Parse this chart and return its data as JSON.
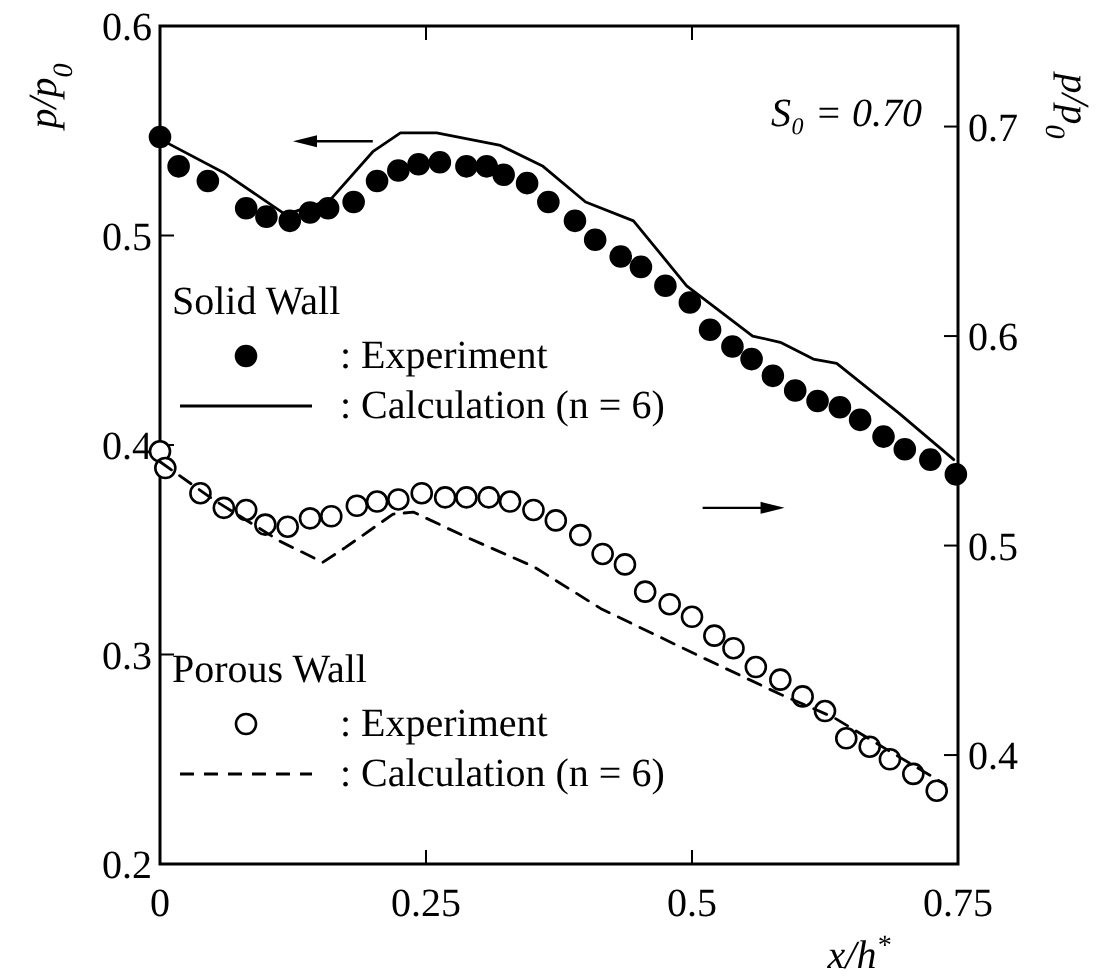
{
  "chart_data": {
    "type": "scatter",
    "xlabel": "x/h$^{*}$",
    "ylabel": "p/p$_{0}$",
    "y2label": "p/p$_{0}$",
    "xlim": [
      0,
      0.75
    ],
    "xticks": [
      0,
      0.25,
      0.5,
      0.75
    ],
    "ylim": [
      0.2,
      0.6
    ],
    "yticks": [
      0.2,
      0.3,
      0.4,
      0.5,
      0.6
    ],
    "y2lim": [
      0.348,
      0.748
    ],
    "y2ticks": [
      0.4,
      0.5,
      0.6,
      0.7
    ],
    "legend": "left",
    "annotations": [
      "S₀ = 0.70",
      "Solid Wall",
      "Porous Wall"
    ],
    "series": [
      {
        "name": ": Experiment",
        "type": "scatter",
        "marker": "circle",
        "color": "#000000",
        "x": [
          0,
          0.0175,
          0.045,
          0.081,
          0.1,
          0.122,
          0.141,
          0.158,
          0.182,
          0.204,
          0.224,
          0.243,
          0.263,
          0.288,
          0.307,
          0.323,
          0.345,
          0.365,
          0.39,
          0.409,
          0.433,
          0.452,
          0.475,
          0.498,
          0.517,
          0.538,
          0.556,
          0.576,
          0.597,
          0.618,
          0.639,
          0.658,
          0.68,
          0.7,
          0.724,
          0.748
        ],
        "values": [
          0.547,
          0.533,
          0.526,
          0.513,
          0.509,
          0.507,
          0.511,
          0.513,
          0.516,
          0.526,
          0.531,
          0.534,
          0.535,
          0.533,
          0.533,
          0.529,
          0.525,
          0.516,
          0.507,
          0.498,
          0.49,
          0.485,
          0.476,
          0.468,
          0.455,
          0.447,
          0.441,
          0.433,
          0.426,
          0.421,
          0.418,
          0.412,
          0.404,
          0.398,
          0.393,
          0.386
        ]
      },
      {
        "name": ": Calculation (n = 6)",
        "type": "line",
        "marker": "none",
        "line_style": "solid",
        "color": "#000000",
        "x": [
          0,
          0.06,
          0.118,
          0.16,
          0.2,
          0.226,
          0.26,
          0.32,
          0.36,
          0.4,
          0.445,
          0.495,
          0.557,
          0.583,
          0.614,
          0.636,
          0.695,
          0.746
        ],
        "values": [
          0.546,
          0.53,
          0.51,
          0.517,
          0.54,
          0.549,
          0.549,
          0.543,
          0.533,
          0.516,
          0.507,
          0.476,
          0.452,
          0.449,
          0.441,
          0.439,
          0.415,
          0.393
        ]
      },
      {
        "name": ": Experiment",
        "marker": "circle-open",
        "axis": "y2",
        "color": "#000000",
        "x": [
          0,
          0.005,
          0.038,
          0.06,
          0.081,
          0.099,
          0.12,
          0.141,
          0.161,
          0.185,
          0.204,
          0.224,
          0.246,
          0.268,
          0.288,
          0.309,
          0.329,
          0.351,
          0.372,
          0.395,
          0.416,
          0.437,
          0.456,
          0.479,
          0.5,
          0.521,
          0.539,
          0.56,
          0.583,
          0.604,
          0.625,
          0.645,
          0.667,
          0.686,
          0.708,
          0.73
        ],
        "values": [
          0.545,
          0.537,
          0.525,
          0.518,
          0.517,
          0.51,
          0.509,
          0.513,
          0.514,
          0.519,
          0.521,
          0.522,
          0.525,
          0.523,
          0.523,
          0.523,
          0.521,
          0.517,
          0.512,
          0.505,
          0.496,
          0.491,
          0.478,
          0.472,
          0.466,
          0.457,
          0.451,
          0.442,
          0.436,
          0.428,
          0.421,
          0.408,
          0.404,
          0.398,
          0.391,
          0.383
        ]
      },
      {
        "name": ": Calculation (n = 6)",
        "type": "line",
        "marker": "none",
        "line_style": "dashed",
        "axis": "y2",
        "color": "#000000",
        "x": [
          0,
          0.05,
          0.113,
          0.153,
          0.174,
          0.219,
          0.238,
          0.288,
          0.351,
          0.414,
          0.508,
          0.583,
          0.633,
          0.695,
          0.738
        ],
        "values": [
          0.54,
          0.522,
          0.502,
          0.492,
          0.499,
          0.515,
          0.516,
          0.504,
          0.49,
          0.47,
          0.447,
          0.429,
          0.418,
          0.399,
          0.386
        ]
      }
    ]
  }
}
